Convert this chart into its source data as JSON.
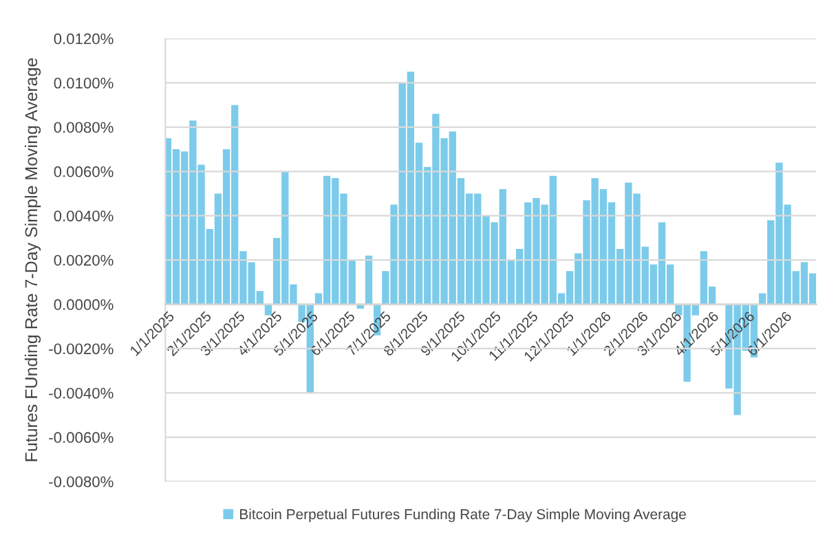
{
  "chart_data": {
    "type": "bar",
    "ylabel": "Futures FUnding Rate 7-Day Simple Moving Average",
    "x": [
      "2025-01-01",
      "2025-01-08",
      "2025-01-15",
      "2025-01-22",
      "2025-01-29",
      "2025-02-05",
      "2025-02-12",
      "2025-02-19",
      "2025-02-26",
      "2025-03-05",
      "2025-03-12",
      "2025-03-19",
      "2025-03-26",
      "2025-04-02",
      "2025-04-09",
      "2025-04-16",
      "2025-04-23",
      "2025-04-30",
      "2025-05-07",
      "2025-05-14",
      "2025-05-21",
      "2025-05-28",
      "2025-06-04",
      "2025-06-11",
      "2025-06-18",
      "2025-06-25",
      "2025-07-02",
      "2025-07-09",
      "2025-07-16",
      "2025-07-23",
      "2025-07-30",
      "2025-08-06",
      "2025-08-13",
      "2025-08-20",
      "2025-08-27",
      "2025-09-03",
      "2025-09-10",
      "2025-09-17",
      "2025-09-24",
      "2025-10-01",
      "2025-10-08",
      "2025-10-15",
      "2025-10-22",
      "2025-10-29",
      "2025-11-05",
      "2025-11-12",
      "2025-11-19",
      "2025-11-26",
      "2025-12-03",
      "2025-12-10",
      "2025-12-17",
      "2025-12-24",
      "2025-12-31",
      "2026-01-07",
      "2026-01-14",
      "2026-01-21",
      "2026-01-28",
      "2026-02-04",
      "2026-02-11",
      "2026-02-18",
      "2026-02-25",
      "2026-03-04",
      "2026-03-11",
      "2026-03-18",
      "2026-03-25",
      "2026-04-01",
      "2026-04-08",
      "2026-04-15",
      "2026-04-22",
      "2026-04-29",
      "2026-05-06",
      "2026-05-13",
      "2026-05-20",
      "2026-05-27",
      "2026-06-03",
      "2026-06-10",
      "2026-06-17",
      "2026-06-24"
    ],
    "series": [
      {
        "name": "Bitcoin Perpetual Futures Funding Rate 7-Day Simple Moving Average",
        "color": "#7ccbea",
        "values": [
          0.0075,
          0.007,
          0.0069,
          0.0083,
          0.0063,
          0.0034,
          0.005,
          0.007,
          0.009,
          0.0024,
          0.0019,
          0.0006,
          -0.0005,
          0.003,
          0.006,
          0.0009,
          -0.0008,
          -0.004,
          0.0005,
          0.0058,
          0.0057,
          0.005,
          0.002,
          -0.0002,
          0.0022,
          -0.0014,
          0.0015,
          0.0045,
          0.01,
          0.0105,
          0.0073,
          0.0062,
          0.0086,
          0.0075,
          0.0078,
          0.0057,
          0.005,
          0.005,
          0.004,
          0.0037,
          0.0052,
          0.002,
          0.0025,
          0.0046,
          0.0048,
          0.0045,
          0.0058,
          0.0005,
          0.0015,
          0.0023,
          0.0047,
          0.0057,
          0.0052,
          0.0046,
          0.0025,
          0.0055,
          0.005,
          0.0026,
          0.0018,
          0.0037,
          0.0018,
          -0.0005,
          -0.0035,
          -0.0005,
          0.0024,
          0.0008,
          0.0,
          -0.0038,
          -0.005,
          -0.0021,
          -0.0024,
          0.0005,
          0.0038,
          0.0064,
          0.0045,
          0.0015,
          0.0019,
          0.0014
        ]
      }
    ],
    "xlim": [
      "2024-12-30",
      "2026-06-27"
    ],
    "xticks": [
      {
        "value": "2025-01-01",
        "label": "1/1/2025"
      },
      {
        "value": "2025-02-01",
        "label": "2/1/2025"
      },
      {
        "value": "2025-03-01",
        "label": "3/1/2025"
      },
      {
        "value": "2025-04-01",
        "label": "4/1/2025"
      },
      {
        "value": "2025-05-01",
        "label": "5/1/2025"
      },
      {
        "value": "2025-06-01",
        "label": "6/1/2025"
      },
      {
        "value": "2025-07-01",
        "label": "7/1/2025"
      },
      {
        "value": "2025-08-01",
        "label": "8/1/2025"
      },
      {
        "value": "2025-09-01",
        "label": "9/1/2025"
      },
      {
        "value": "2025-10-01",
        "label": "10/1/2025"
      },
      {
        "value": "2025-11-01",
        "label": "11/1/2025"
      },
      {
        "value": "2025-12-01",
        "label": "12/1/2025"
      },
      {
        "value": "2026-01-01",
        "label": "1/1/2026"
      },
      {
        "value": "2026-02-01",
        "label": "2/1/2026"
      },
      {
        "value": "2026-03-01",
        "label": "3/1/2026"
      },
      {
        "value": "2026-04-01",
        "label": "4/1/2026"
      },
      {
        "value": "2026-05-01",
        "label": "5/1/2026"
      },
      {
        "value": "2026-06-01",
        "label": "6/1/2026"
      }
    ],
    "ylim": [
      -0.008,
      0.012
    ],
    "yticks": [
      {
        "value": -0.008,
        "label": "-0.0080%"
      },
      {
        "value": -0.006,
        "label": "-0.0060%"
      },
      {
        "value": -0.004,
        "label": "-0.0040%"
      },
      {
        "value": -0.002,
        "label": "-0.0020%"
      },
      {
        "value": 0,
        "label": "0.0000%"
      },
      {
        "value": 0.002,
        "label": "0.0020%"
      },
      {
        "value": 0.004,
        "label": "0.0040%"
      },
      {
        "value": 0.006,
        "label": "0.0060%"
      },
      {
        "value": 0.008,
        "label": "0.0080%"
      },
      {
        "value": 0.01,
        "label": "0.0100%"
      },
      {
        "value": 0.012,
        "label": "0.0120%"
      }
    ],
    "grid": "y",
    "legend": "bottom"
  }
}
